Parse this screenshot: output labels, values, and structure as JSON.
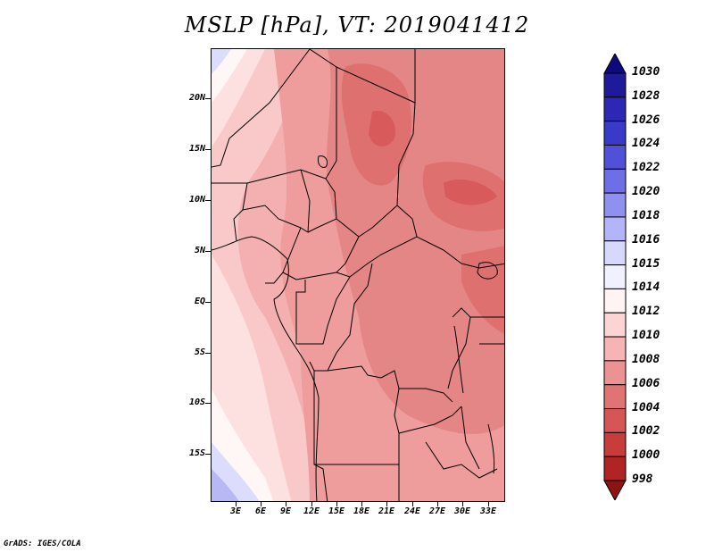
{
  "title": "MSLP [hPa], VT: 2019041412",
  "credit": "GrADS: IGES/COLA",
  "latitude_labels": [
    "20N",
    "15N",
    "10N",
    "5N",
    "EQ",
    "5S",
    "10S",
    "15S"
  ],
  "longitude_labels": [
    "3E",
    "6E",
    "9E",
    "12E",
    "15E",
    "18E",
    "21E",
    "24E",
    "27E",
    "30E",
    "33E"
  ],
  "colorbar": {
    "labels": [
      "1030",
      "1028",
      "1026",
      "1024",
      "1022",
      "1020",
      "1018",
      "1016",
      "1015",
      "1014",
      "1012",
      "1010",
      "1008",
      "1006",
      "1004",
      "1002",
      "1000",
      "998"
    ],
    "colors": [
      "#0c0a7c",
      "#1e1a9a",
      "#2c28b4",
      "#3a3ac8",
      "#5050d8",
      "#6e6ee6",
      "#9090f0",
      "#b4b4f8",
      "#d8d8fc",
      "#f0f0ff",
      "#fff4f4",
      "#fdd4d4",
      "#f6b4b4",
      "#ec9292",
      "#e07474",
      "#d65656",
      "#c83c3c",
      "#b02424",
      "#8c1414"
    ]
  },
  "map_colors": {
    "blue_high": "#b8b8f4",
    "blue_light": "#dcdcfc",
    "white": "#fff6f6",
    "pink_light": "#fde0e0",
    "pink": "#f9c8c8",
    "pink_mid": "#f4b0b0",
    "salmon": "#ee9c9c",
    "red_mid": "#e58686",
    "red": "#de7070",
    "red_deep": "#d85a5a"
  }
}
